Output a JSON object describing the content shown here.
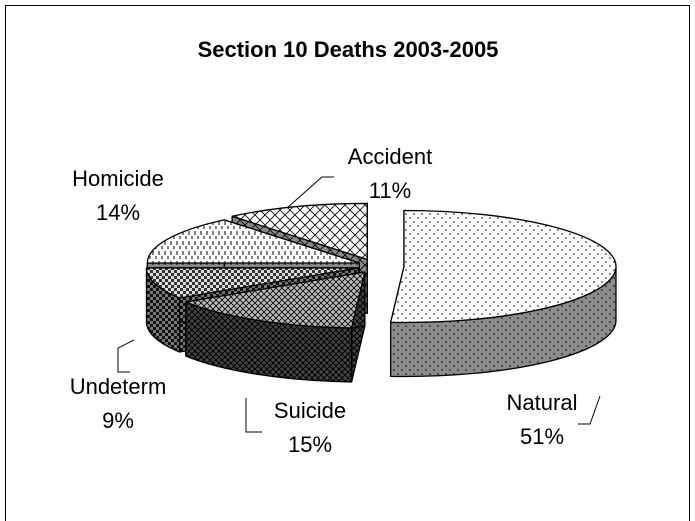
{
  "chart_data": {
    "type": "pie",
    "title": "Section 10 Deaths 2003-2005",
    "categories": [
      "Natural",
      "Suicide",
      "Undeterm",
      "Homicide",
      "Accident"
    ],
    "values": [
      51,
      15,
      9,
      14,
      11
    ],
    "value_labels": [
      "51%",
      "15%",
      "9%",
      "14%",
      "11%"
    ]
  }
}
